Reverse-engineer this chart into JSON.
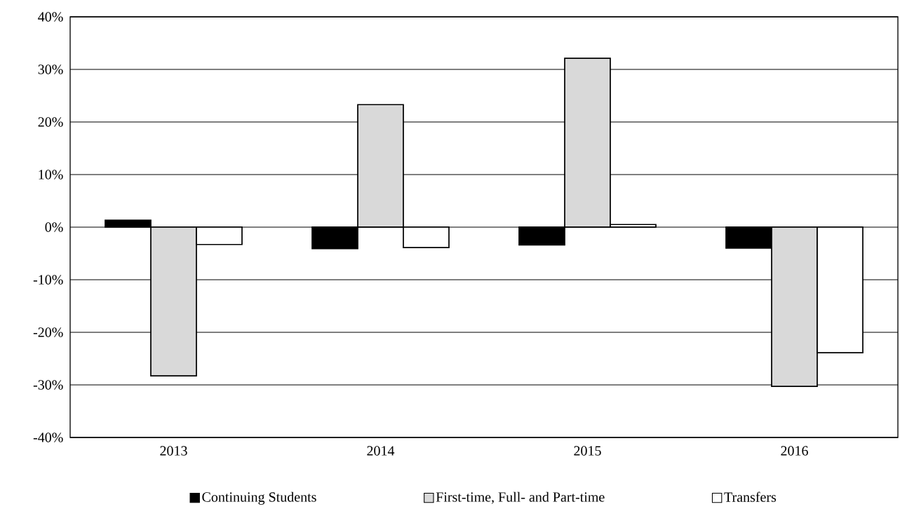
{
  "chart_data": {
    "type": "bar",
    "categories": [
      "2013",
      "2014",
      "2015",
      "2016"
    ],
    "series": [
      {
        "name": "Continuing Students",
        "color": "#000000",
        "values": [
          1.3,
          -4.1,
          -3.4,
          -4.0
        ]
      },
      {
        "name": "First-time, Full- and Part-time",
        "color": "#d9d9d9",
        "values": [
          -28.3,
          23.3,
          32.1,
          -30.3
        ]
      },
      {
        "name": "Transfers",
        "color": "#ffffff",
        "values": [
          -3.3,
          -3.9,
          0.5,
          -23.9
        ]
      }
    ],
    "ylim": [
      -40,
      40
    ],
    "yticks": [
      {
        "value": -40,
        "label": "-40%"
      },
      {
        "value": -30,
        "label": "-30%"
      },
      {
        "value": -20,
        "label": "-20%"
      },
      {
        "value": -10,
        "label": "-10%"
      },
      {
        "value": 0,
        "label": "0%"
      },
      {
        "value": 10,
        "label": "10%"
      },
      {
        "value": 20,
        "label": "20%"
      },
      {
        "value": 30,
        "label": "30%"
      },
      {
        "value": 40,
        "label": "40%"
      }
    ],
    "grid": "y",
    "legend": "bottom"
  }
}
